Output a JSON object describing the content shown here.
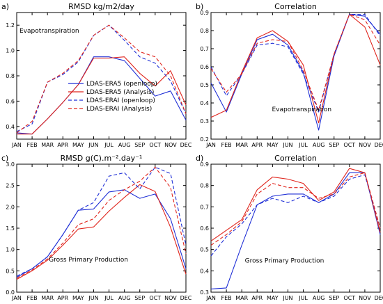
{
  "figure": {
    "legend": [
      {
        "label": "LDAS-ERA5 (openloop)",
        "color": "#1f2fd6",
        "dashed": false
      },
      {
        "label": "LDAS-ERA5 (Analysis)",
        "color": "#e0241c",
        "dashed": false
      },
      {
        "label": "LDAS-ERAI (openloop)",
        "color": "#1f2fd6",
        "dashed": true
      },
      {
        "label": "LDAS-ERAI (Analysis)",
        "color": "#e0241c",
        "dashed": true
      }
    ]
  },
  "chart_data": [
    {
      "type": "line",
      "panel_letter": "a)",
      "title": "RMSD kg/m2/day",
      "annotation": "Evapotranspiration",
      "categories": [
        "JAN",
        "FEB",
        "MAR",
        "APR",
        "MAY",
        "JUN",
        "JUL",
        "AUG",
        "SEP",
        "OCT",
        "NOV",
        "DEC"
      ],
      "ylim": [
        0.3,
        1.3
      ],
      "yticks": [
        "0.4",
        "0.6",
        "0.8",
        "1.0",
        "1.2"
      ],
      "ytick_values": [
        0.4,
        0.6,
        0.8,
        1.0,
        1.2
      ],
      "series": [
        {
          "name": "LDAS-ERA5 (openloop)",
          "color": "#1f2fd6",
          "dashed": false,
          "values": [
            0.35,
            0.34,
            0.46,
            0.59,
            0.73,
            0.95,
            0.95,
            0.92,
            0.78,
            0.64,
            0.68,
            0.45
          ]
        },
        {
          "name": "LDAS-ERA5 (Analysis)",
          "color": "#e0241c",
          "dashed": false,
          "values": [
            0.34,
            0.34,
            0.46,
            0.59,
            0.73,
            0.94,
            0.94,
            0.95,
            0.82,
            0.72,
            0.84,
            0.57
          ]
        },
        {
          "name": "LDAS-ERAI (openloop)",
          "color": "#1f2fd6",
          "dashed": true,
          "values": [
            0.36,
            0.42,
            0.75,
            0.81,
            0.91,
            1.12,
            1.2,
            1.08,
            0.95,
            0.9,
            0.76,
            0.5
          ]
        },
        {
          "name": "LDAS-ERAI (Analysis)",
          "color": "#e0241c",
          "dashed": true,
          "values": [
            0.35,
            0.44,
            0.75,
            0.82,
            0.92,
            1.12,
            1.2,
            1.1,
            0.99,
            0.95,
            0.8,
            0.5
          ]
        }
      ]
    },
    {
      "type": "line",
      "panel_letter": "b)",
      "title": "Correlation",
      "annotation": "Evapotranspiration",
      "categories": [
        "JAN",
        "FEB",
        "MAR",
        "APR",
        "MAY",
        "JUN",
        "JUL",
        "AUG",
        "SEP",
        "OCT",
        "NOV",
        "DEC"
      ],
      "ylim": [
        0.2,
        0.9
      ],
      "yticks": [
        "0.2",
        "0.3",
        "0.4",
        "0.5",
        "0.6",
        "0.7",
        "0.8",
        "0.9"
      ],
      "ytick_values": [
        0.2,
        0.3,
        0.4,
        0.5,
        0.6,
        0.7,
        0.8,
        0.9
      ],
      "series": [
        {
          "name": "LDAS-ERA5 (openloop)",
          "color": "#1f2fd6",
          "dashed": false,
          "values": [
            0.51,
            0.35,
            0.56,
            0.75,
            0.78,
            0.72,
            0.57,
            0.25,
            0.66,
            0.89,
            0.88,
            0.78
          ]
        },
        {
          "name": "LDAS-ERA5 (Analysis)",
          "color": "#e0241c",
          "dashed": false,
          "values": [
            0.32,
            0.36,
            0.57,
            0.76,
            0.8,
            0.74,
            0.61,
            0.29,
            0.67,
            0.89,
            0.82,
            0.61
          ]
        },
        {
          "name": "LDAS-ERAI (openloop)",
          "color": "#1f2fd6",
          "dashed": true,
          "values": [
            0.6,
            0.44,
            0.56,
            0.72,
            0.73,
            0.71,
            0.56,
            0.35,
            0.67,
            0.89,
            0.89,
            0.77
          ]
        },
        {
          "name": "LDAS-ERAI (Analysis)",
          "color": "#e0241c",
          "dashed": true,
          "values": [
            0.59,
            0.46,
            0.56,
            0.73,
            0.75,
            0.74,
            0.58,
            0.36,
            0.67,
            0.89,
            0.86,
            0.72
          ]
        }
      ]
    },
    {
      "type": "line",
      "panel_letter": "c)",
      "title": "RMSD g(C).m⁻².day⁻¹",
      "annotation": "Gross Primary Production",
      "categories": [
        "JAN",
        "FEB",
        "MAR",
        "APR",
        "MAY",
        "JUN",
        "JUL",
        "AUG",
        "SEP",
        "OCT",
        "NOV",
        "DEC"
      ],
      "ylim": [
        0.0,
        3.0
      ],
      "yticks": [
        "0.0",
        "0.5",
        "1.0",
        "1.5",
        "2.0",
        "2.5",
        "3.0"
      ],
      "ytick_values": [
        0.0,
        0.5,
        1.0,
        1.5,
        2.0,
        2.5,
        3.0
      ],
      "series": [
        {
          "name": "LDAS-ERA5 (openloop)",
          "color": "#1f2fd6",
          "dashed": false,
          "values": [
            0.35,
            0.55,
            0.83,
            1.35,
            1.92,
            1.95,
            2.35,
            2.4,
            2.2,
            2.3,
            1.72,
            0.55
          ]
        },
        {
          "name": "LDAS-ERA5 (Analysis)",
          "color": "#e0241c",
          "dashed": false,
          "values": [
            0.3,
            0.5,
            0.75,
            1.1,
            1.48,
            1.53,
            1.9,
            2.22,
            2.52,
            2.36,
            1.52,
            0.42
          ]
        },
        {
          "name": "LDAS-ERAI (openloop)",
          "color": "#1f2fd6",
          "dashed": true,
          "values": [
            0.38,
            0.55,
            0.83,
            1.35,
            1.92,
            2.1,
            2.72,
            2.8,
            2.42,
            2.93,
            2.78,
            1.1
          ]
        },
        {
          "name": "LDAS-ERAI (Analysis)",
          "color": "#e0241c",
          "dashed": true,
          "values": [
            0.33,
            0.52,
            0.78,
            1.15,
            1.58,
            1.72,
            2.15,
            2.4,
            2.6,
            2.93,
            2.45,
            0.9
          ]
        }
      ]
    },
    {
      "type": "line",
      "panel_letter": "d)",
      "title": "Correlation",
      "annotation": "Gross Primary Production",
      "categories": [
        "JAN",
        "FEB",
        "MAR",
        "APR",
        "MAY",
        "JUN",
        "JUL",
        "AUG",
        "SEP",
        "OCT",
        "NOV",
        "DEC"
      ],
      "ylim": [
        0.3,
        0.9
      ],
      "yticks": [
        "0.3",
        "0.4",
        "0.5",
        "0.6",
        "0.7",
        "0.8",
        "0.9"
      ],
      "ytick_values": [
        0.3,
        0.4,
        0.5,
        0.6,
        0.7,
        0.8,
        0.9
      ],
      "series": [
        {
          "name": "LDAS-ERA5 (openloop)",
          "color": "#1f2fd6",
          "dashed": false,
          "values": [
            0.315,
            0.32,
            0.52,
            0.71,
            0.75,
            0.76,
            0.76,
            0.72,
            0.76,
            0.86,
            0.86,
            0.57
          ]
        },
        {
          "name": "LDAS-ERA5 (Analysis)",
          "color": "#e0241c",
          "dashed": false,
          "values": [
            0.54,
            0.59,
            0.64,
            0.78,
            0.84,
            0.83,
            0.81,
            0.73,
            0.77,
            0.88,
            0.86,
            0.58
          ]
        },
        {
          "name": "LDAS-ERAI (openloop)",
          "color": "#1f2fd6",
          "dashed": true,
          "values": [
            0.47,
            0.56,
            0.62,
            0.71,
            0.74,
            0.72,
            0.75,
            0.72,
            0.75,
            0.83,
            0.85,
            0.6
          ]
        },
        {
          "name": "LDAS-ERAI (Analysis)",
          "color": "#e0241c",
          "dashed": true,
          "values": [
            0.52,
            0.57,
            0.63,
            0.76,
            0.81,
            0.79,
            0.79,
            0.74,
            0.76,
            0.84,
            0.86,
            0.6
          ]
        }
      ]
    }
  ]
}
